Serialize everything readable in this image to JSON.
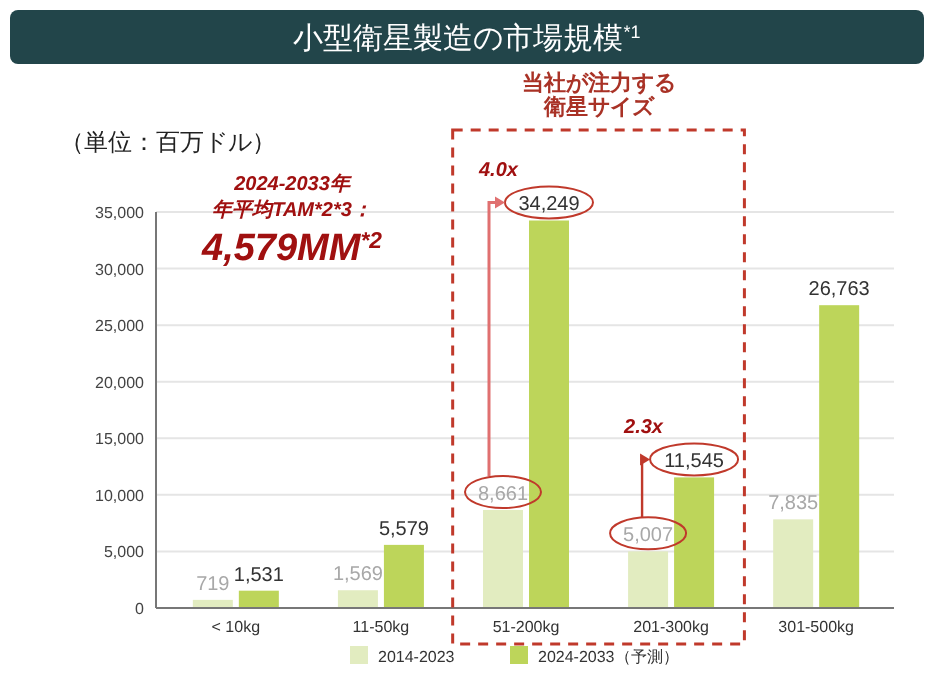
{
  "chart_data": {
    "type": "bar",
    "title": "小型衛星製造の市場規模$^{*1}$",
    "ylabel": "（単位：百万ドル）",
    "categories": [
      "< 10kg",
      "11-50kg",
      "51-200kg",
      "201-300kg",
      "301-500kg"
    ],
    "series": [
      {
        "name": "2014-2023",
        "color": "#e2ecc0",
        "values": [
          719,
          1569,
          8661,
          5007,
          7835
        ],
        "value_labels": [
          "719",
          "1,569",
          "8,661",
          "5,007",
          "7,835"
        ]
      },
      {
        "name": "2024-2033（予測）",
        "color": "#bdd55a",
        "values": [
          1531,
          5579,
          34249,
          11545,
          26763
        ],
        "value_labels": [
          "1,531",
          "5,579",
          "34,249",
          "11,545",
          "26,763"
        ]
      }
    ],
    "ylim": [
      0,
      35000
    ],
    "yticks": [
      0,
      {
        "value": 5000,
        "label": "5,000"
      },
      {
        "value": 10000,
        "label": "10,000"
      },
      {
        "value": 15000,
        "label": "15,000"
      },
      {
        "value": 20000,
        "label": "20,000"
      },
      {
        "value": 25000,
        "label": "25,000"
      },
      {
        "value": 30000,
        "label": "30,000"
      },
      {
        "value": 35000,
        "label": "35,000"
      }
    ],
    "grid": "y",
    "legend": "bottom",
    "annotations": [
      "当社が注力する",
      "衛星サイズ",
      "2024-2033年",
      "年平均TAM*2*3：",
      "4,579MM$^{*2}$",
      "4.0x",
      "2.3x"
    ]
  }
}
